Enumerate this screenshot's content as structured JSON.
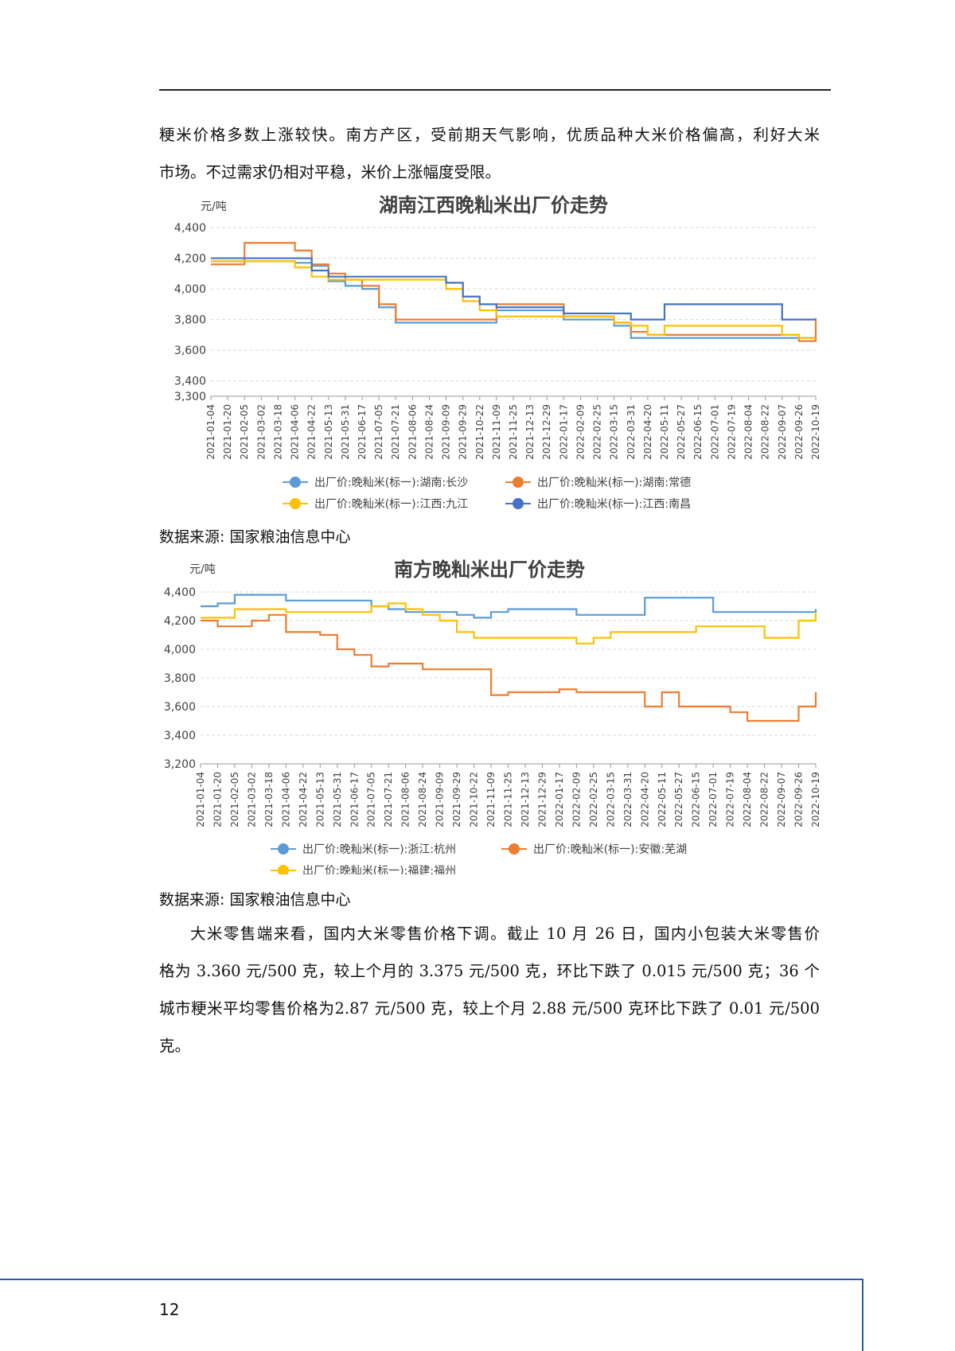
{
  "page": {
    "paragraph1": {
      "lines": [
        "粳米价格多数上涨较快。南方产区，受前期天气影响，优质品种大米价格偏高，利好大米",
        "市场。不过需求仍相对平稳，米价上涨幅度受限。"
      ]
    },
    "source1": "数据来源: 国家粮油信息中心",
    "source2": "数据来源: 国家粮油信息中心",
    "paragraph2": {
      "lines": [
        "大米零售端来看，国内大米零售价格下调。截止 10 月 26 日，国内小包装大米零售价",
        "格为 3.360 元/500 克，较上个月的 3.375 元/500 克，环比下跌了 0.015 元/500 克；36 个",
        "城市粳米平均零售价格为2.87 元/500 克，较上个月 2.88 元/500 克环比下跌了 0.01 元/500",
        "克。"
      ]
    },
    "page_number": "12",
    "colors": {
      "footer_line": "#2a5aa8"
    }
  },
  "chart_data": [
    {
      "type": "line",
      "title": "湖南江西晚籼米出厂价走势",
      "ylabel": "元/吨",
      "ylim": [
        3300,
        4400
      ],
      "yticks": [
        3300,
        3400,
        3600,
        3800,
        4000,
        4200,
        4400
      ],
      "categories": [
        "2021-01-04",
        "2021-01-20",
        "2021-02-05",
        "2021-03-02",
        "2021-03-18",
        "2021-04-06",
        "2021-04-22",
        "2021-05-13",
        "2021-05-31",
        "2021-06-17",
        "2021-07-05",
        "2021-07-21",
        "2021-08-06",
        "2021-08-24",
        "2021-09-09",
        "2021-09-29",
        "2021-10-22",
        "2021-11-09",
        "2021-11-25",
        "2021-12-13",
        "2021-12-29",
        "2022-01-17",
        "2022-02-09",
        "2022-02-25",
        "2022-03-15",
        "2022-03-31",
        "2022-04-20",
        "2022-05-11",
        "2022-05-27",
        "2022-06-15",
        "2022-07-01",
        "2022-07-19",
        "2022-08-04",
        "2022-08-22",
        "2022-09-07",
        "2022-09-26",
        "2022-10-19"
      ],
      "grid": true,
      "legend_position": "bottom",
      "series": [
        {
          "name": "出厂价:晚籼米(标一):湖南:长沙",
          "color": "#5b9bd5",
          "values": [
            4180,
            4180,
            4180,
            4180,
            4180,
            4170,
            4150,
            4050,
            4020,
            4000,
            3880,
            3780,
            3780,
            3780,
            3780,
            3780,
            3780,
            3860,
            3860,
            3860,
            3860,
            3800,
            3800,
            3800,
            3760,
            3680,
            3680,
            3680,
            3680,
            3680,
            3680,
            3680,
            3680,
            3680,
            3680,
            3680,
            3700
          ]
        },
        {
          "name": "出厂价:晚籼米(标一):湖南:常德",
          "color": "#ed7d31",
          "values": [
            4160,
            4160,
            4300,
            4300,
            4300,
            4250,
            4160,
            4100,
            4060,
            4020,
            3900,
            3800,
            3800,
            3800,
            3800,
            3800,
            3800,
            3900,
            3900,
            3900,
            3900,
            3820,
            3820,
            3820,
            3780,
            3720,
            3700,
            3700,
            3700,
            3700,
            3700,
            3700,
            3700,
            3700,
            3700,
            3660,
            3810
          ]
        },
        {
          "name": "出厂价:晚籼米(标一):江西:九江",
          "color": "#ffc000",
          "values": [
            4180,
            4180,
            4180,
            4180,
            4180,
            4140,
            4080,
            4060,
            4060,
            4060,
            4060,
            4060,
            4060,
            4060,
            4000,
            3920,
            3860,
            3820,
            3820,
            3820,
            3820,
            3820,
            3820,
            3820,
            3780,
            3760,
            3700,
            3760,
            3760,
            3760,
            3760,
            3760,
            3760,
            3760,
            3700,
            3680,
            3680
          ]
        },
        {
          "name": "出厂价:晚籼米(标一):江西:南昌",
          "color": "#4472c4",
          "values": [
            4200,
            4200,
            4200,
            4200,
            4200,
            4200,
            4120,
            4080,
            4080,
            4080,
            4080,
            4080,
            4080,
            4080,
            4040,
            3950,
            3900,
            3880,
            3880,
            3880,
            3880,
            3840,
            3840,
            3840,
            3840,
            3800,
            3800,
            3900,
            3900,
            3900,
            3900,
            3900,
            3900,
            3900,
            3800,
            3800,
            3800
          ]
        }
      ]
    },
    {
      "type": "line",
      "title": "南方晚籼米出厂价走势",
      "ylabel": "元/吨",
      "ylim": [
        3200,
        4400
      ],
      "yticks": [
        3200,
        3400,
        3600,
        3800,
        4000,
        4200,
        4400
      ],
      "categories": [
        "2021-01-04",
        "2021-01-20",
        "2021-02-05",
        "2021-03-02",
        "2021-03-18",
        "2021-04-06",
        "2021-04-22",
        "2021-05-13",
        "2021-05-31",
        "2021-06-17",
        "2021-07-05",
        "2021-07-21",
        "2021-08-06",
        "2021-08-24",
        "2021-09-09",
        "2021-09-29",
        "2021-10-22",
        "2021-11-09",
        "2021-11-25",
        "2021-12-13",
        "2021-12-29",
        "2022-01-17",
        "2022-02-09",
        "2022-02-25",
        "2022-03-15",
        "2022-03-31",
        "2022-04-20",
        "2022-05-11",
        "2022-05-27",
        "2022-06-15",
        "2022-07-01",
        "2022-07-19",
        "2022-08-04",
        "2022-08-22",
        "2022-09-07",
        "2022-09-26",
        "2022-10-19"
      ],
      "grid": true,
      "legend_position": "bottom",
      "series": [
        {
          "name": "出厂价:晚籼米(标一):浙江:杭州",
          "color": "#5b9bd5",
          "values": [
            4300,
            4320,
            4380,
            4380,
            4380,
            4340,
            4340,
            4340,
            4340,
            4340,
            4300,
            4280,
            4260,
            4260,
            4260,
            4240,
            4220,
            4260,
            4280,
            4280,
            4280,
            4280,
            4240,
            4240,
            4240,
            4240,
            4360,
            4360,
            4360,
            4360,
            4260,
            4260,
            4260,
            4260,
            4260,
            4260,
            4280
          ]
        },
        {
          "name": "出厂价:晚籼米(标一):安徽:芜湖",
          "color": "#ed7d31",
          "values": [
            4200,
            4160,
            4160,
            4200,
            4240,
            4120,
            4120,
            4100,
            4000,
            3960,
            3880,
            3900,
            3900,
            3860,
            3860,
            3860,
            3860,
            3680,
            3700,
            3700,
            3700,
            3720,
            3700,
            3700,
            3700,
            3700,
            3600,
            3700,
            3600,
            3600,
            3600,
            3560,
            3500,
            3500,
            3500,
            3600,
            3700
          ]
        },
        {
          "name": "出厂价:晚籼米(标一):福建:福州",
          "color": "#ffc000",
          "values": [
            4220,
            4220,
            4280,
            4280,
            4280,
            4260,
            4260,
            4260,
            4260,
            4260,
            4300,
            4320,
            4280,
            4240,
            4200,
            4120,
            4080,
            4080,
            4080,
            4080,
            4080,
            4080,
            4040,
            4080,
            4120,
            4120,
            4120,
            4120,
            4120,
            4160,
            4160,
            4160,
            4160,
            4080,
            4080,
            4200,
            4260
          ]
        }
      ]
    }
  ]
}
